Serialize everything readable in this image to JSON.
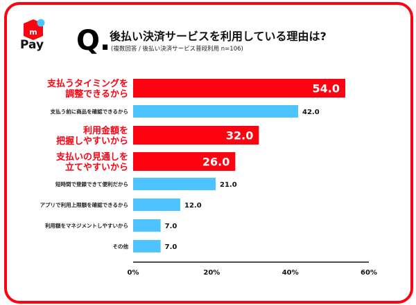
{
  "logo": {
    "text": "Pay",
    "icon": "mercari-box-logo",
    "accent": "#ff0211",
    "dot": "#4dc4ff"
  },
  "header": {
    "q_mark": "Q.",
    "title": "後払い決済サービスを利用している理由は?",
    "subtitle": "(複数回答 / 後払い決済サービス普段利用 n=106)"
  },
  "chart_data": {
    "type": "bar",
    "orientation": "horizontal",
    "categories": [
      [
        "支払うタイミングを",
        "調整できるから"
      ],
      [
        "支払う前に商品を確認できるから"
      ],
      [
        "利用金額を",
        "把握しやすいから"
      ],
      [
        "支払いの見通しを",
        "立てやすいから"
      ],
      [
        "短時間で登録できて便利だから"
      ],
      [
        "アプリで利用上限額を確認できるから"
      ],
      [
        "利用額をマネジメントしやすいから"
      ],
      [
        "その他"
      ]
    ],
    "values": [
      54.0,
      42.0,
      32.0,
      26.0,
      21.0,
      12.0,
      7.0,
      7.0
    ],
    "value_labels": [
      "54.0",
      "42.0",
      "32.0",
      "26.0",
      "21.0",
      "12.0",
      "7.0",
      "7.0"
    ],
    "highlighted": [
      true,
      false,
      true,
      true,
      false,
      false,
      false,
      false
    ],
    "xlim": [
      0,
      60
    ],
    "xticks": [
      "0%",
      "20%",
      "40%",
      "60%"
    ],
    "xtick_values": [
      0,
      20,
      40,
      60
    ],
    "colors": {
      "highlight": "#ff0211",
      "normal": "#4dc4ff"
    },
    "grid": false
  }
}
